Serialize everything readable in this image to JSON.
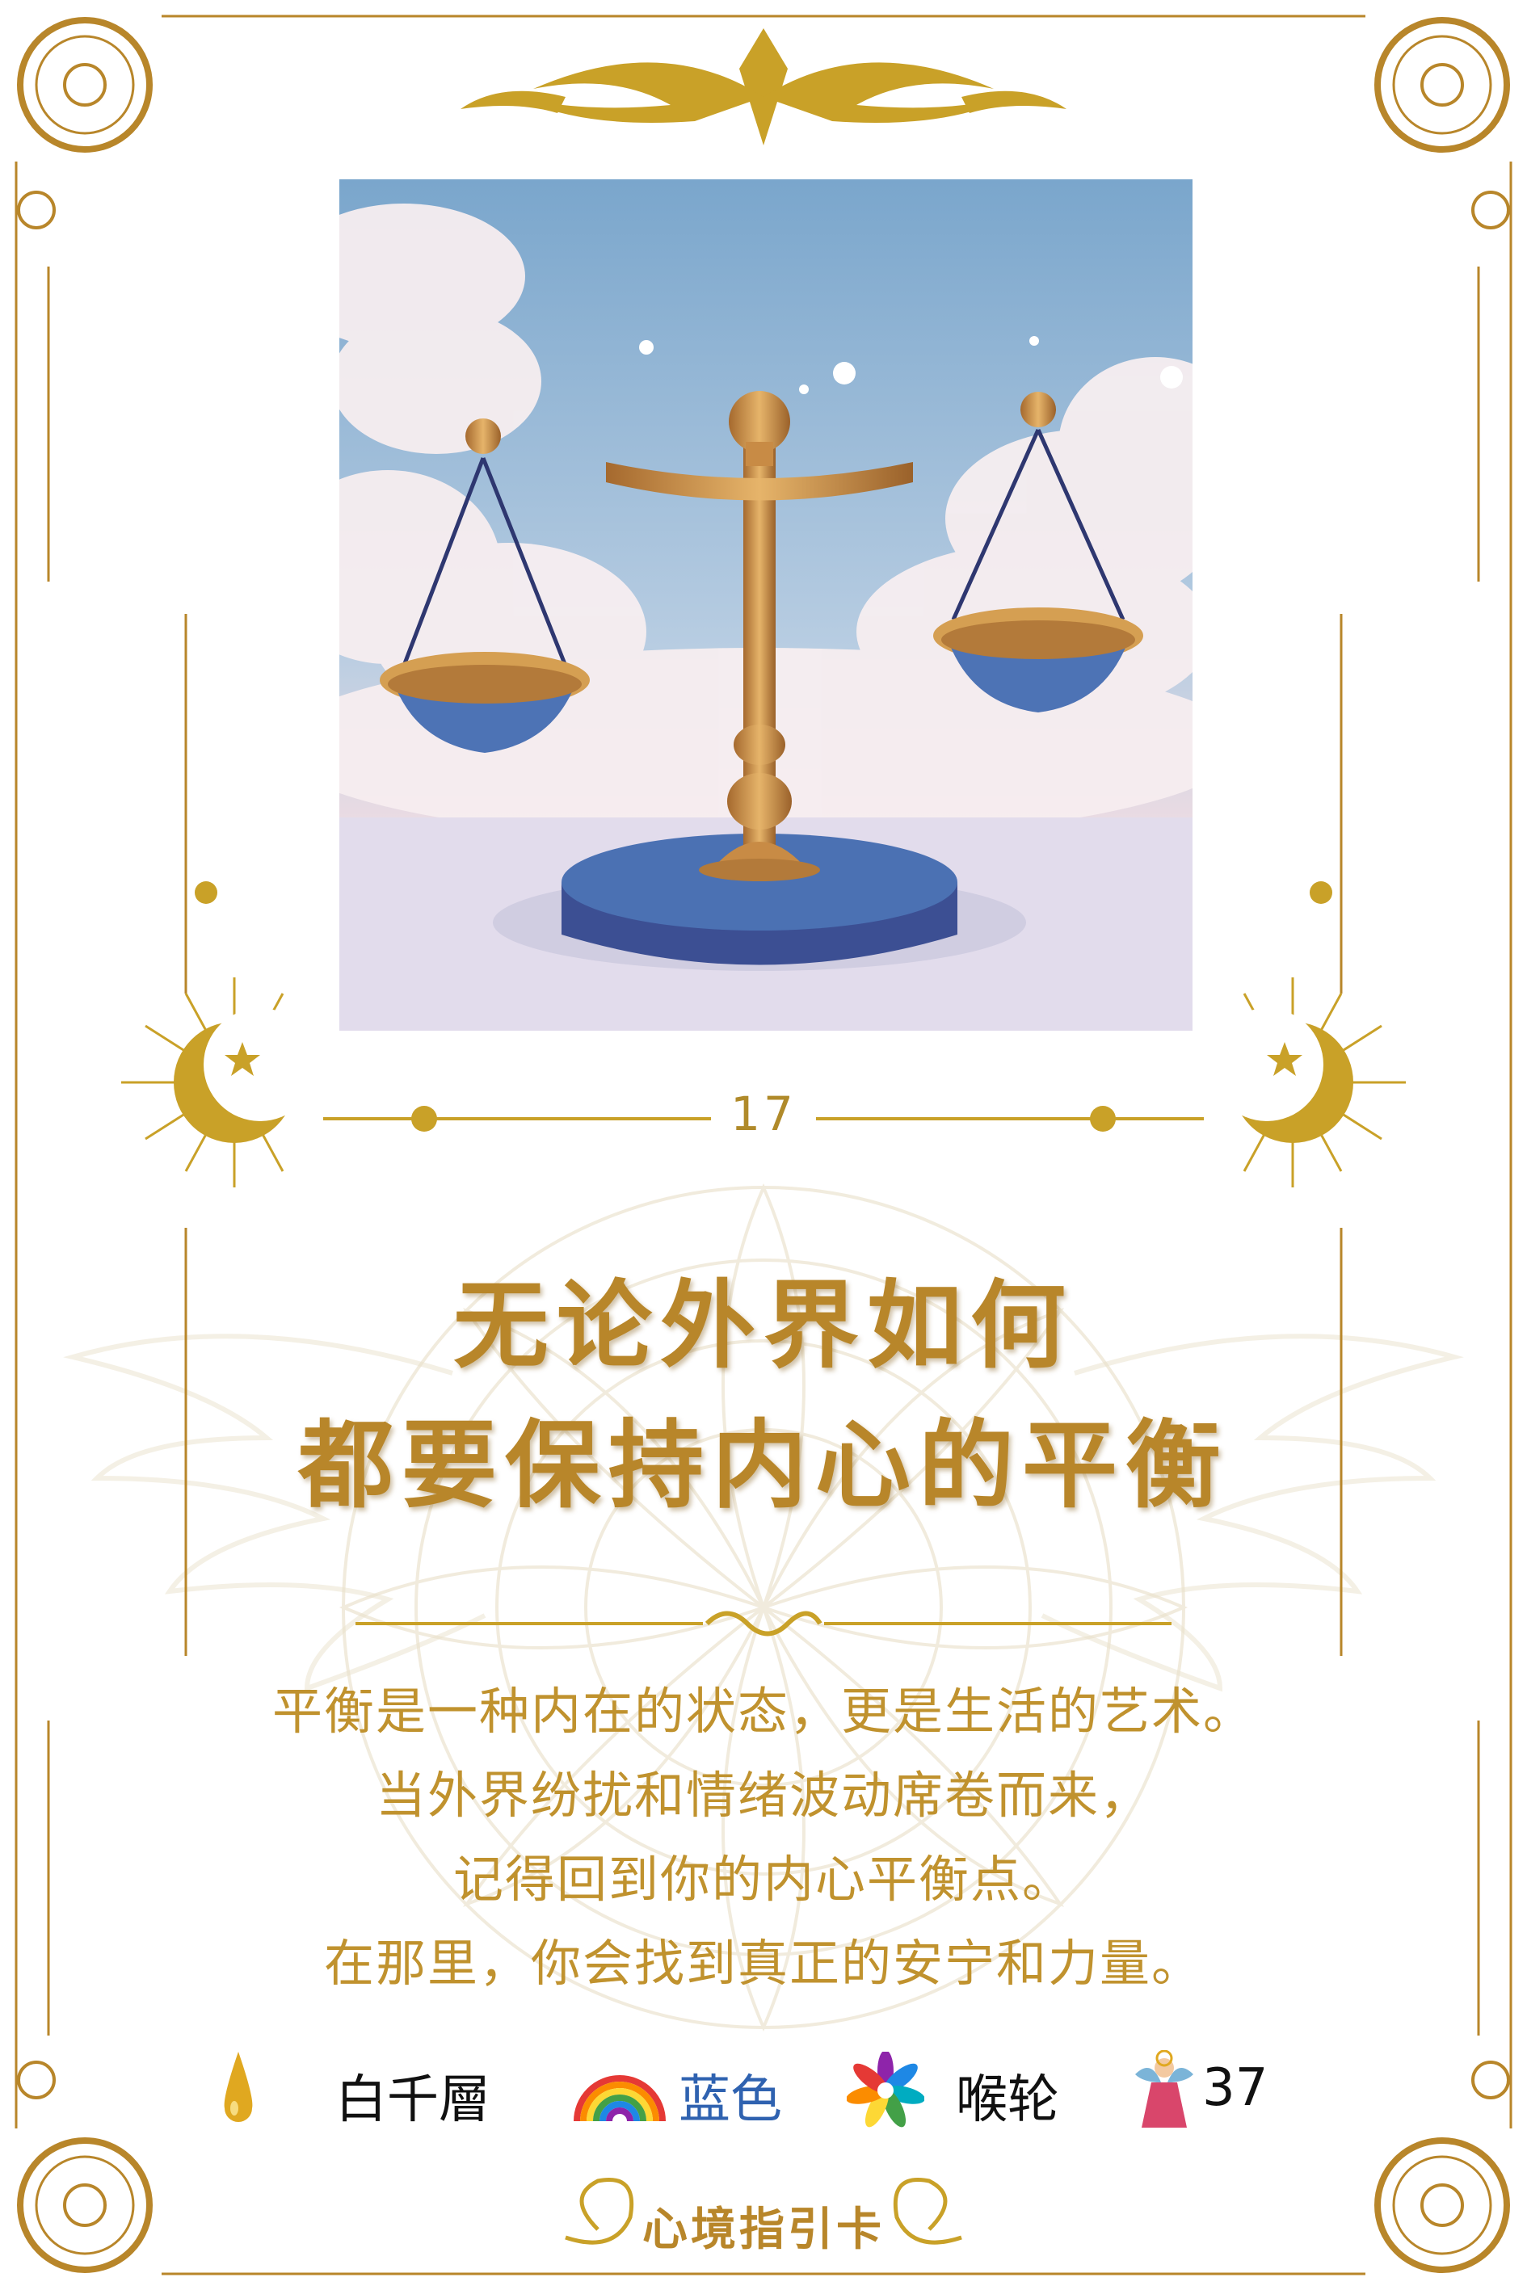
{
  "card": {
    "number": "17",
    "title_line1": "无论外界如何",
    "title_line2": "都要保持内心的平衡",
    "body": [
      "平衡是一种内在的状态，更是生活的艺术。",
      "当外界纷扰和情绪波动席卷而来，",
      "记得回到你的内心平衡点。",
      "在那里，你会找到真正的安宁和力量。"
    ],
    "footer_label": "心境指引卡"
  },
  "attributes": {
    "oil": {
      "icon": "oil-drop-icon",
      "label": "白千層"
    },
    "color": {
      "icon": "rainbow-icon",
      "label": "蓝色",
      "color_hex": "#2f62b0"
    },
    "chakra": {
      "icon": "lotus-chakra-icon",
      "label": "喉轮"
    },
    "angel": {
      "icon": "angel-icon",
      "label": "37"
    }
  },
  "palette": {
    "gold": "#b8862a",
    "sky": "#6f9fc6",
    "scale_blue": "#3e63a6"
  }
}
